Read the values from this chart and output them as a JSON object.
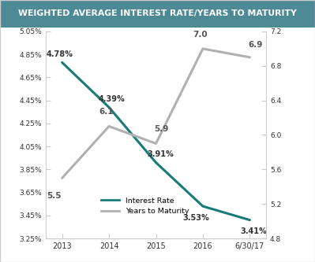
{
  "title": "WEIGHTED AVERAGE INTEREST RATE/YEARS TO MATURITY",
  "title_bg_color": "#4d8a96",
  "title_text_color": "#ffffff",
  "x_labels": [
    "2013",
    "2014",
    "2015",
    "2016",
    "6/30/17"
  ],
  "x_values": [
    0,
    1,
    2,
    3,
    4
  ],
  "interest_rate": [
    4.78,
    4.39,
    3.91,
    3.53,
    3.41
  ],
  "interest_rate_labels": [
    "4.78%",
    "4.39%",
    "3.91%",
    "3.53%",
    "3.41%"
  ],
  "ir_label_offsets_x": [
    -0.05,
    0.05,
    0.1,
    -0.15,
    0.08
  ],
  "ir_label_offsets_y": [
    0.04,
    0.04,
    0.04,
    -0.07,
    -0.065
  ],
  "ir_label_va": [
    "bottom",
    "bottom",
    "bottom",
    "top",
    "top"
  ],
  "years_to_maturity": [
    5.5,
    6.1,
    5.9,
    7.0,
    6.9
  ],
  "years_to_maturity_labels": [
    "5.5",
    "6.1",
    "5.9",
    "7.0",
    "6.9"
  ],
  "ytm_label_offsets_x": [
    -0.18,
    -0.05,
    0.12,
    -0.05,
    0.12
  ],
  "ytm_label_offsets_y": [
    -0.25,
    0.12,
    0.12,
    0.12,
    0.1
  ],
  "interest_rate_color": "#1a7a7a",
  "years_to_maturity_color": "#b0b0b0",
  "left_ylim": [
    3.25,
    5.05
  ],
  "right_ylim": [
    4.8,
    7.2
  ],
  "left_yticks": [
    3.25,
    3.45,
    3.65,
    3.85,
    4.05,
    4.25,
    4.45,
    4.65,
    4.85,
    5.05
  ],
  "right_yticks": [
    4.8,
    5.2,
    5.6,
    6.0,
    6.4,
    6.8,
    7.2
  ],
  "left_ytick_labels": [
    "3.25%",
    "3.45%",
    "3.65%",
    "3.85%",
    "4.05%",
    "4.25%",
    "4.45%",
    "4.65%",
    "4.85%",
    "5.05%"
  ],
  "right_ytick_labels": [
    "4.8",
    "5.2",
    "5.6",
    "6.0",
    "6.4",
    "6.8",
    "7.2"
  ],
  "legend_interest_rate": "Interest Rate",
  "legend_years": "Years to Maturity",
  "background_color": "#ffffff",
  "plot_bg_color": "#ffffff",
  "line_width": 2.2,
  "border_color": "#cccccc",
  "tick_label_color": "#333333",
  "annotation_color": "#333333"
}
